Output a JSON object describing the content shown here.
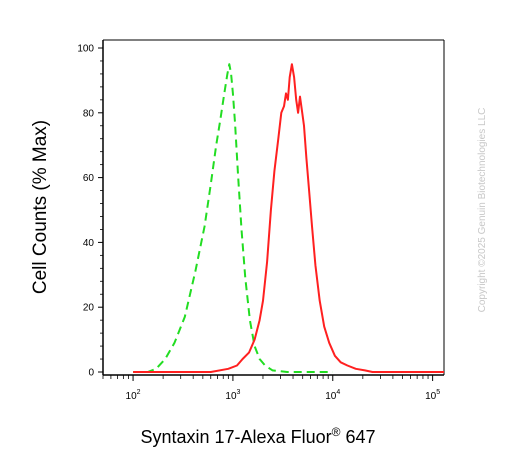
{
  "chart_data": {
    "type": "line",
    "xlabel": "Syntaxin 17-Alexa Fluor",
    "xlabel_sup": "®",
    "xlabel_suffix": " 647",
    "ylabel": "Cell Counts (% Max)",
    "x_scale": "log",
    "xlim": [
      50,
      130000
    ],
    "ylim": [
      0,
      100
    ],
    "y_ticks": [
      0,
      20,
      40,
      60,
      80,
      100
    ],
    "x_ticks": [
      {
        "value": 100,
        "base": "10",
        "exp": "2"
      },
      {
        "value": 1000,
        "base": "10",
        "exp": "3"
      },
      {
        "value": 10000,
        "base": "10",
        "exp": "4"
      },
      {
        "value": 100000,
        "base": "10",
        "exp": "5"
      }
    ],
    "grid": false,
    "legend": "none",
    "series": [
      {
        "style": "dashed",
        "color": "#22dd22",
        "points": [
          [
            100,
            0
          ],
          [
            140,
            0
          ],
          [
            170,
            1
          ],
          [
            210,
            4
          ],
          [
            260,
            9
          ],
          [
            330,
            17
          ],
          [
            420,
            31
          ],
          [
            520,
            45
          ],
          [
            600,
            58
          ],
          [
            680,
            70
          ],
          [
            750,
            78
          ],
          [
            820,
            86
          ],
          [
            880,
            92
          ],
          [
            920,
            95
          ],
          [
            960,
            92
          ],
          [
            1000,
            86
          ],
          [
            1050,
            77
          ],
          [
            1130,
            60
          ],
          [
            1220,
            44
          ],
          [
            1330,
            29
          ],
          [
            1480,
            16
          ],
          [
            1650,
            8
          ],
          [
            1850,
            4
          ],
          [
            2100,
            2
          ],
          [
            2500,
            0.5
          ],
          [
            3500,
            0
          ],
          [
            10000,
            0
          ]
        ]
      },
      {
        "style": "solid",
        "color": "#ff2020",
        "points": [
          [
            100,
            0
          ],
          [
            600,
            0
          ],
          [
            900,
            1
          ],
          [
            1100,
            2
          ],
          [
            1250,
            4
          ],
          [
            1450,
            6
          ],
          [
            1650,
            10
          ],
          [
            1850,
            16
          ],
          [
            2000,
            22
          ],
          [
            2200,
            34
          ],
          [
            2400,
            50
          ],
          [
            2600,
            62
          ],
          [
            2850,
            72
          ],
          [
            3050,
            80
          ],
          [
            3250,
            82
          ],
          [
            3400,
            86
          ],
          [
            3550,
            84
          ],
          [
            3700,
            91
          ],
          [
            3900,
            95
          ],
          [
            4100,
            91
          ],
          [
            4300,
            84
          ],
          [
            4500,
            80
          ],
          [
            4700,
            85
          ],
          [
            4900,
            81
          ],
          [
            5150,
            76
          ],
          [
            5450,
            66
          ],
          [
            5800,
            56
          ],
          [
            6200,
            45
          ],
          [
            6700,
            33
          ],
          [
            7400,
            22
          ],
          [
            8200,
            14
          ],
          [
            9200,
            9
          ],
          [
            10500,
            5
          ],
          [
            12000,
            3
          ],
          [
            14000,
            2
          ],
          [
            17000,
            1
          ],
          [
            21000,
            0.5
          ],
          [
            25000,
            0
          ],
          [
            130000,
            0
          ]
        ]
      }
    ]
  },
  "watermark": "Copyright ©2025 Genuin Biotechnologies LLC"
}
